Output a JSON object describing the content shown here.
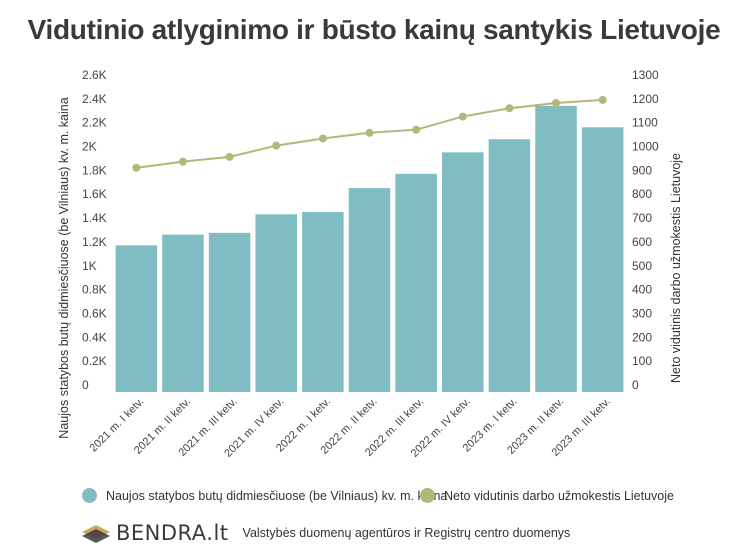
{
  "title": "Vidutinio atlyginimo ir būsto kainų santykis Lietuvoje",
  "colors": {
    "bars": "#7fbdc3",
    "line": "#b5b77a",
    "text": "#3a3a3a"
  },
  "chart_data": {
    "type": "bar",
    "categories": [
      "2021 m. I ketv.",
      "2021 m. II ketv.",
      "2021 m. III ketv.",
      "2021 m. IV ketv.",
      "2022 m. I ketv.",
      "2022 m. II ketv.",
      "2022 m. III ketv.",
      "2022 m. IV ketv.",
      "2023 m. I ketv.",
      "2023 m. II ketv.",
      "2023 m. III ketv."
    ],
    "series": [
      {
        "name": "Naujos statybos butų didmiesčiuose (be Vilniaus) kv. m. kaina",
        "type": "bar",
        "axis": "left",
        "values": [
          1230,
          1320,
          1335,
          1490,
          1510,
          1710,
          1830,
          2010,
          2120,
          2400,
          2220
        ]
      },
      {
        "name": "Neto vidutinis darbo užmokestis Lietuvoje",
        "type": "line",
        "axis": "right",
        "values": [
          940,
          966,
          986,
          1033,
          1063,
          1087,
          1100,
          1155,
          1190,
          1212,
          1225
        ]
      }
    ],
    "ylabel": "Naujos statybos butų didmiesčiuose (be Vilniaus) kv. m. kaina",
    "y2label": "Neto vidutinis darbo užmokestis Lietuvoje",
    "ylim": [
      0,
      2600
    ],
    "y2lim": [
      0,
      1300
    ],
    "yticks": [
      "0",
      "0.2K",
      "0.4K",
      "0.6K",
      "0.8K",
      "1K",
      "1.2K",
      "1.4K",
      "1.6K",
      "1.8K",
      "2K",
      "2.2K",
      "2.4K",
      "2.6K"
    ],
    "y2ticks": [
      "0",
      "100",
      "200",
      "300",
      "400",
      "500",
      "600",
      "700",
      "800",
      "900",
      "1000",
      "1100",
      "1200",
      "1300"
    ],
    "grid": false,
    "legend_position": "bottom"
  },
  "logo": {
    "text": "BENDRA.lt"
  },
  "source": "Valstybės duomenų agentūros ir Registrų centro duomenys"
}
